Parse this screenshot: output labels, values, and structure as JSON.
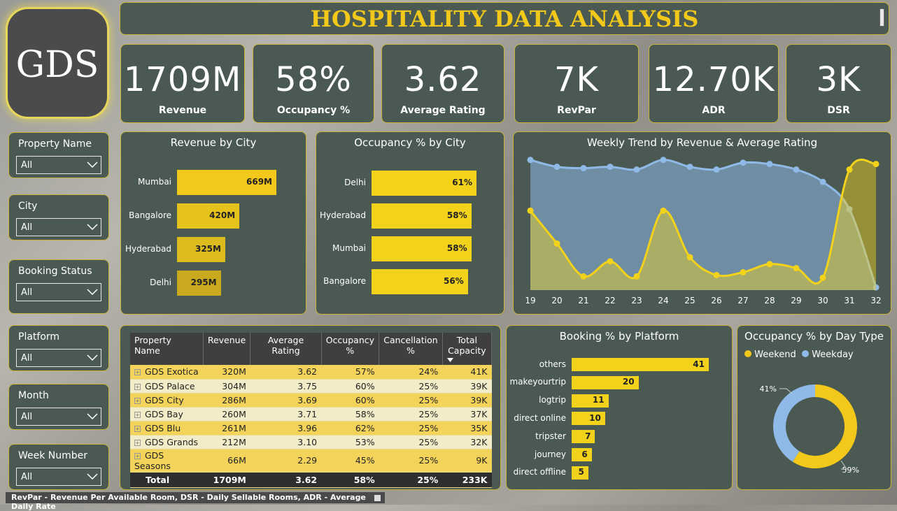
{
  "title": "HOSPITALITY DATA ANALYSIS",
  "logo": "GDS",
  "kpis": [
    {
      "value": "1709M",
      "label": "Revenue"
    },
    {
      "value": "58%",
      "label": "Occupancy %"
    },
    {
      "value": "3.62",
      "label": "Average Rating"
    },
    {
      "value": "7K",
      "label": "RevPar"
    },
    {
      "value": "12.70K",
      "label": "ADR"
    },
    {
      "value": "3K",
      "label": "DSR"
    }
  ],
  "slicers": [
    {
      "title": "Property Name",
      "value": "All"
    },
    {
      "title": "City",
      "value": "All"
    },
    {
      "title": "Booking Status",
      "value": "All"
    },
    {
      "title": "Platform",
      "value": "All"
    },
    {
      "title": "Month",
      "value": "All"
    },
    {
      "title": "Week Number",
      "value": "All"
    }
  ],
  "revenue_by_city": {
    "title": "Revenue by City",
    "items": [
      {
        "label": "Mumbai",
        "value": 669,
        "text": "669M",
        "color": "#f2c81a"
      },
      {
        "label": "Bangalore",
        "value": 420,
        "text": "420M",
        "color": "#e6c21c"
      },
      {
        "label": "Hyderabad",
        "value": 325,
        "text": "325M",
        "color": "#dcbb1e"
      },
      {
        "label": "Delhi",
        "value": 295,
        "text": "295M",
        "color": "#c9aa1e"
      }
    ]
  },
  "occupancy_by_city": {
    "title": "Occupancy % by City",
    "items": [
      {
        "label": "Delhi",
        "value": 61,
        "text": "61%"
      },
      {
        "label": "Hyderabad",
        "value": 58,
        "text": "58%"
      },
      {
        "label": "Mumbai",
        "value": 58,
        "text": "58%"
      },
      {
        "label": "Bangalore",
        "value": 56,
        "text": "56%"
      }
    ]
  },
  "weekly_trend": {
    "title": "Weekly Trend by Revenue & Average Rating",
    "x": [
      "19",
      "20",
      "21",
      "22",
      "23",
      "24",
      "25",
      "26",
      "27",
      "28",
      "29",
      "30",
      "31",
      "32"
    ],
    "revenue": [
      0.95,
      0.9,
      0.89,
      0.9,
      0.88,
      0.95,
      0.9,
      0.88,
      0.93,
      0.92,
      0.88,
      0.79,
      0.59,
      0.02
    ],
    "rating": [
      0.58,
      0.34,
      0.1,
      0.21,
      0.1,
      0.58,
      0.24,
      0.11,
      0.13,
      0.19,
      0.16,
      0.09,
      0.88,
      0.92
    ],
    "colors": {
      "revenue": "#8fb9e6",
      "rating": "#f2d21a"
    }
  },
  "property_table": {
    "headers": [
      "Property Name",
      "Revenue",
      "Average Rating",
      "Occupancy %",
      "Cancellation %",
      "Total Capacity"
    ],
    "rows": [
      [
        "GDS Exotica",
        "320M",
        "3.62",
        "57%",
        "24%",
        "41K"
      ],
      [
        "GDS Palace",
        "304M",
        "3.75",
        "60%",
        "25%",
        "39K"
      ],
      [
        "GDS City",
        "286M",
        "3.69",
        "60%",
        "25%",
        "39K"
      ],
      [
        "GDS Bay",
        "260M",
        "3.71",
        "58%",
        "25%",
        "37K"
      ],
      [
        "GDS Blu",
        "261M",
        "3.96",
        "62%",
        "25%",
        "35K"
      ],
      [
        "GDS Grands",
        "212M",
        "3.10",
        "53%",
        "25%",
        "32K"
      ],
      [
        "GDS Seasons",
        "66M",
        "2.29",
        "45%",
        "25%",
        "9K"
      ]
    ],
    "total": [
      "Total",
      "1709M",
      "3.62",
      "58%",
      "25%",
      "233K"
    ]
  },
  "booking_by_platform": {
    "title": "Booking % by Platform",
    "items": [
      {
        "label": "others",
        "value": 41
      },
      {
        "label": "makeyourtrip",
        "value": 20
      },
      {
        "label": "logtrip",
        "value": 11
      },
      {
        "label": "direct online",
        "value": 10
      },
      {
        "label": "tripster",
        "value": 7
      },
      {
        "label": "journey",
        "value": 6
      },
      {
        "label": "direct offline",
        "value": 5
      }
    ]
  },
  "occupancy_by_daytype": {
    "title": "Occupancy % by Day Type",
    "legend": [
      {
        "label": "Weekend",
        "color": "#f2c81a"
      },
      {
        "label": "Weekday",
        "color": "#8fb9e6"
      }
    ],
    "slices": [
      {
        "label": "Weekend",
        "value": 59,
        "text": "59%",
        "color": "#f2c81a"
      },
      {
        "label": "Weekday",
        "value": 41,
        "text": "41%",
        "color": "#8fb9e6"
      }
    ]
  },
  "footnote": "RevPar - Revenue Per Available Room, DSR - Daily Sellable Rooms, ADR - Average Daily Rate"
}
